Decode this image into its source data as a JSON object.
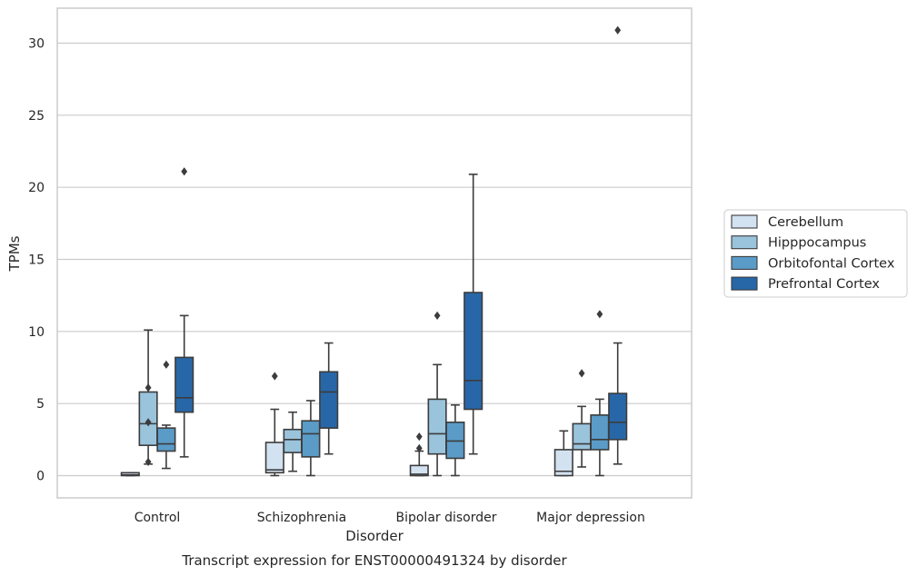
{
  "chart_data": {
    "type": "box",
    "title": "",
    "caption": "Transcript expression for ENST00000491324 by disorder",
    "xlabel": "Disorder",
    "ylabel": "TPMs",
    "ylim": [
      -1.5,
      32.3
    ],
    "yticks": [
      0,
      5,
      10,
      15,
      20,
      25,
      30
    ],
    "grid": "horizontal",
    "legend_position": "right",
    "categories": [
      "Control",
      "Schizophrenia",
      "Bipolar disorder",
      "Major depression"
    ],
    "series": [
      {
        "name": "Cerebellum",
        "color": "#d3e2f0",
        "boxes": [
          {
            "whislo": 0,
            "q1": 0,
            "med": 0.05,
            "q3": 0.2,
            "whishi": 0.2,
            "fliers": []
          },
          {
            "whislo": 0,
            "q1": 0.2,
            "med": 0.4,
            "q3": 2.3,
            "whishi": 4.6,
            "fliers": [
              6.9
            ]
          },
          {
            "whislo": 0,
            "q1": 0,
            "med": 0.1,
            "q3": 0.7,
            "whishi": 1.7,
            "fliers": [
              1.9,
              2.7
            ]
          },
          {
            "whislo": 0,
            "q1": 0,
            "med": 0.3,
            "q3": 1.8,
            "whishi": 3.1,
            "fliers": []
          }
        ]
      },
      {
        "name": "Hipppocampus",
        "color": "#9ac3dc",
        "boxes": [
          {
            "whislo": 0.8,
            "q1": 2.1,
            "med": 3.6,
            "q3": 5.8,
            "whishi": 10.1,
            "fliers": [
              0.95,
              3.7,
              6.1
            ]
          },
          {
            "whislo": 0.3,
            "q1": 1.6,
            "med": 2.5,
            "q3": 3.2,
            "whishi": 4.4,
            "fliers": []
          },
          {
            "whislo": 0,
            "q1": 1.5,
            "med": 2.9,
            "q3": 5.3,
            "whishi": 7.7,
            "fliers": [
              11.1
            ]
          },
          {
            "whislo": 0.6,
            "q1": 1.8,
            "med": 2.2,
            "q3": 3.6,
            "whishi": 4.8,
            "fliers": [
              7.1
            ]
          }
        ]
      },
      {
        "name": "Orbitofontal Cortex",
        "color": "#5a9bc8",
        "boxes": [
          {
            "whislo": 0.5,
            "q1": 1.7,
            "med": 2.2,
            "q3": 3.3,
            "whishi": 3.5,
            "fliers": [
              7.7
            ]
          },
          {
            "whislo": 0,
            "q1": 1.3,
            "med": 2.9,
            "q3": 3.8,
            "whishi": 5.2,
            "fliers": []
          },
          {
            "whislo": 0,
            "q1": 1.2,
            "med": 2.4,
            "q3": 3.7,
            "whishi": 4.9,
            "fliers": []
          },
          {
            "whislo": 0,
            "q1": 1.8,
            "med": 2.5,
            "q3": 4.2,
            "whishi": 5.3,
            "fliers": [
              11.2
            ]
          }
        ]
      },
      {
        "name": "Prefrontal Cortex",
        "color": "#2767a8",
        "boxes": [
          {
            "whislo": 1.3,
            "q1": 4.4,
            "med": 5.4,
            "q3": 8.2,
            "whishi": 11.1,
            "fliers": [
              21.1
            ]
          },
          {
            "whislo": 1.5,
            "q1": 3.3,
            "med": 5.8,
            "q3": 7.2,
            "whishi": 9.2,
            "fliers": []
          },
          {
            "whislo": 1.5,
            "q1": 4.6,
            "med": 6.6,
            "q3": 12.7,
            "whishi": 20.9,
            "fliers": []
          },
          {
            "whislo": 0.8,
            "q1": 2.5,
            "med": 3.7,
            "q3": 5.7,
            "whishi": 9.2,
            "fliers": [
              30.9
            ]
          }
        ]
      }
    ]
  }
}
